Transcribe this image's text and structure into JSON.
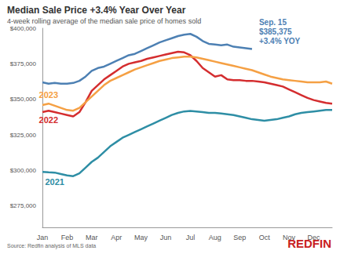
{
  "chart_data": {
    "type": "line",
    "title": "Median Sale Price +3.4% Year Over Year",
    "subtitle": "4-week rolling average of the median sale price of homes sold",
    "source": "Source: Redfin analysis of MLS data",
    "brand": "REDFIN",
    "grid": false,
    "categories": [
      "Jan",
      null,
      null,
      null,
      "Feb",
      null,
      null,
      null,
      "Mar",
      null,
      null,
      null,
      "Apr",
      null,
      null,
      null,
      "May",
      null,
      null,
      null,
      "Jun",
      null,
      null,
      null,
      "Jul",
      null,
      null,
      null,
      "Aug",
      null,
      null,
      null,
      "Sep",
      null,
      null,
      null,
      "Oct",
      null,
      null,
      null,
      "Nov",
      null,
      null,
      null,
      "Dec",
      null,
      null,
      null
    ],
    "ylim": [
      260000,
      400000
    ],
    "yticks": [
      {
        "value": 275000,
        "label": "$275,000"
      },
      {
        "value": 300000,
        "label": "$300,000"
      },
      {
        "value": 325000,
        "label": "$325,000"
      },
      {
        "value": 350000,
        "label": "$350,000"
      },
      {
        "value": 375000,
        "label": "$375,000"
      },
      {
        "value": 400000,
        "label": "$400,000"
      }
    ],
    "series": [
      {
        "name": "2021",
        "color": "#2e8ea5",
        "values": [
          299000,
          298700,
          298500,
          297500,
          296500,
          296000,
          298000,
          302000,
          306000,
          309000,
          313000,
          317000,
          320000,
          323000,
          325000,
          327000,
          329000,
          331000,
          333000,
          335000,
          337000,
          339000,
          340500,
          341500,
          341800,
          341500,
          341000,
          340500,
          340500,
          340000,
          339500,
          339000,
          338000,
          337000,
          336000,
          335500,
          335000,
          335500,
          336000,
          337000,
          338000,
          339500,
          340500,
          341000,
          341500,
          342000,
          342500,
          342500
        ]
      },
      {
        "name": "2022",
        "color": "#d42d2f",
        "values": [
          341000,
          342000,
          341000,
          340000,
          339000,
          338000,
          341000,
          348000,
          356000,
          360000,
          364000,
          367000,
          370000,
          373000,
          375000,
          376000,
          377000,
          378500,
          379500,
          380500,
          381500,
          382500,
          383500,
          383000,
          381000,
          377000,
          372000,
          369000,
          366000,
          367000,
          364000,
          363500,
          363500,
          363000,
          363000,
          362500,
          362000,
          361000,
          360000,
          359000,
          357000,
          355000,
          353000,
          351000,
          349500,
          348500,
          347500,
          347000
        ]
      },
      {
        "name": "2023",
        "color": "#f5a044",
        "values": [
          346000,
          347000,
          345500,
          344000,
          342500,
          342000,
          344000,
          348000,
          352000,
          356000,
          360000,
          363000,
          365000,
          367000,
          369000,
          371000,
          372500,
          374000,
          375500,
          377000,
          378000,
          379000,
          379500,
          380000,
          380000,
          379500,
          378500,
          377500,
          376500,
          375500,
          374500,
          373500,
          372500,
          371500,
          370500,
          369000,
          367500,
          366000,
          365000,
          364000,
          363500,
          363000,
          362500,
          362000,
          362000,
          362000,
          362500,
          361000
        ]
      },
      {
        "color": "#4d80b3",
        "annotation": [
          "Sep. 15",
          "$385,375",
          "+3.4% YOY"
        ],
        "values": [
          362000,
          361000,
          361500,
          361000,
          361000,
          361500,
          363000,
          366000,
          370000,
          372000,
          373000,
          375000,
          377000,
          379000,
          381000,
          382000,
          384000,
          386000,
          388000,
          390000,
          391500,
          393000,
          394500,
          395500,
          396000,
          394000,
          391000,
          389000,
          388500,
          388000,
          388500,
          387000,
          386500,
          386000,
          385375,
          null,
          null,
          null,
          null,
          null,
          null,
          null,
          null,
          null,
          null,
          null,
          null,
          null
        ]
      }
    ]
  }
}
